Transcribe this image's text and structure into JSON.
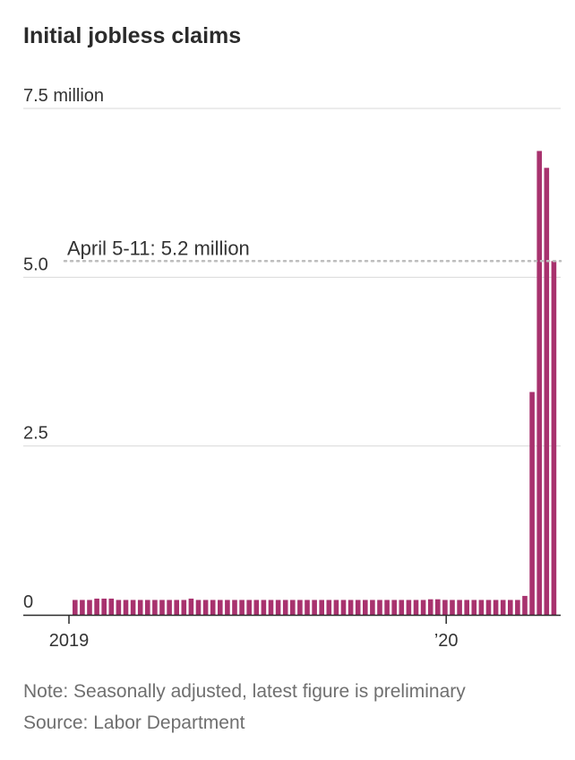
{
  "chart_data": {
    "type": "bar",
    "title": "Initial jobless claims",
    "unit_label": "million",
    "ylim": [
      0,
      7.5
    ],
    "y_ticks": [
      {
        "value": 0,
        "label": "0"
      },
      {
        "value": 2.5,
        "label": "2.5"
      },
      {
        "value": 5.0,
        "label": "5.0"
      },
      {
        "value": 7.5,
        "label": "7.5 million"
      }
    ],
    "x_ticks": [
      {
        "label": "2019",
        "week_index": 0
      },
      {
        "label": "’20",
        "week_index": 52
      }
    ],
    "frequency": "weekly",
    "first_week": "2019-01-05",
    "color": "#a8326e",
    "values": [
      0.22,
      0.22,
      0.22,
      0.24,
      0.24,
      0.24,
      0.22,
      0.22,
      0.22,
      0.22,
      0.22,
      0.22,
      0.22,
      0.22,
      0.22,
      0.22,
      0.24,
      0.22,
      0.22,
      0.22,
      0.22,
      0.22,
      0.22,
      0.22,
      0.22,
      0.22,
      0.22,
      0.22,
      0.22,
      0.22,
      0.22,
      0.22,
      0.22,
      0.22,
      0.22,
      0.22,
      0.22,
      0.22,
      0.22,
      0.22,
      0.22,
      0.22,
      0.22,
      0.22,
      0.22,
      0.22,
      0.22,
      0.22,
      0.22,
      0.23,
      0.23,
      0.22,
      0.22,
      0.22,
      0.22,
      0.22,
      0.22,
      0.22,
      0.22,
      0.22,
      0.22,
      0.22,
      0.28,
      3.3,
      6.87,
      6.62,
      5.24
    ],
    "annotation": {
      "text": "April 5-11: 5.2 million",
      "value": 5.24
    }
  },
  "footer": {
    "note": "Note: Seasonally adjusted, latest figure is preliminary",
    "source": "Source: Labor Department"
  }
}
